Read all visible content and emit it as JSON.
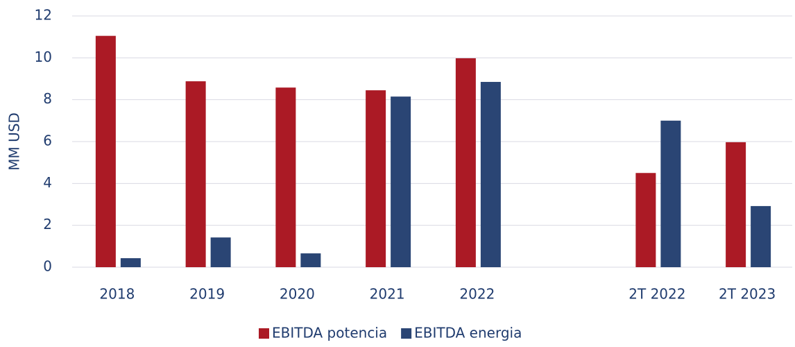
{
  "chart_data": {
    "type": "bar",
    "y_label": "MM USD",
    "categories": [
      "2018",
      "2019",
      "2020",
      "2021",
      "2022",
      null,
      "2T 2022",
      "2T 2023"
    ],
    "series": [
      {
        "name": "EBITDA potencia",
        "color": "#ab1a25",
        "values": [
          11.05,
          8.88,
          8.58,
          8.45,
          9.98,
          null,
          4.5,
          5.97
        ]
      },
      {
        "name": "EBITDA energia",
        "color": "#2a4574",
        "values": [
          0.43,
          1.42,
          0.66,
          8.15,
          8.85,
          null,
          7.0,
          2.92
        ]
      }
    ],
    "ylim": [
      0,
      12
    ],
    "yticks": [
      0,
      2,
      4,
      6,
      8,
      10,
      12
    ],
    "grid": true,
    "legend": "bottom"
  }
}
